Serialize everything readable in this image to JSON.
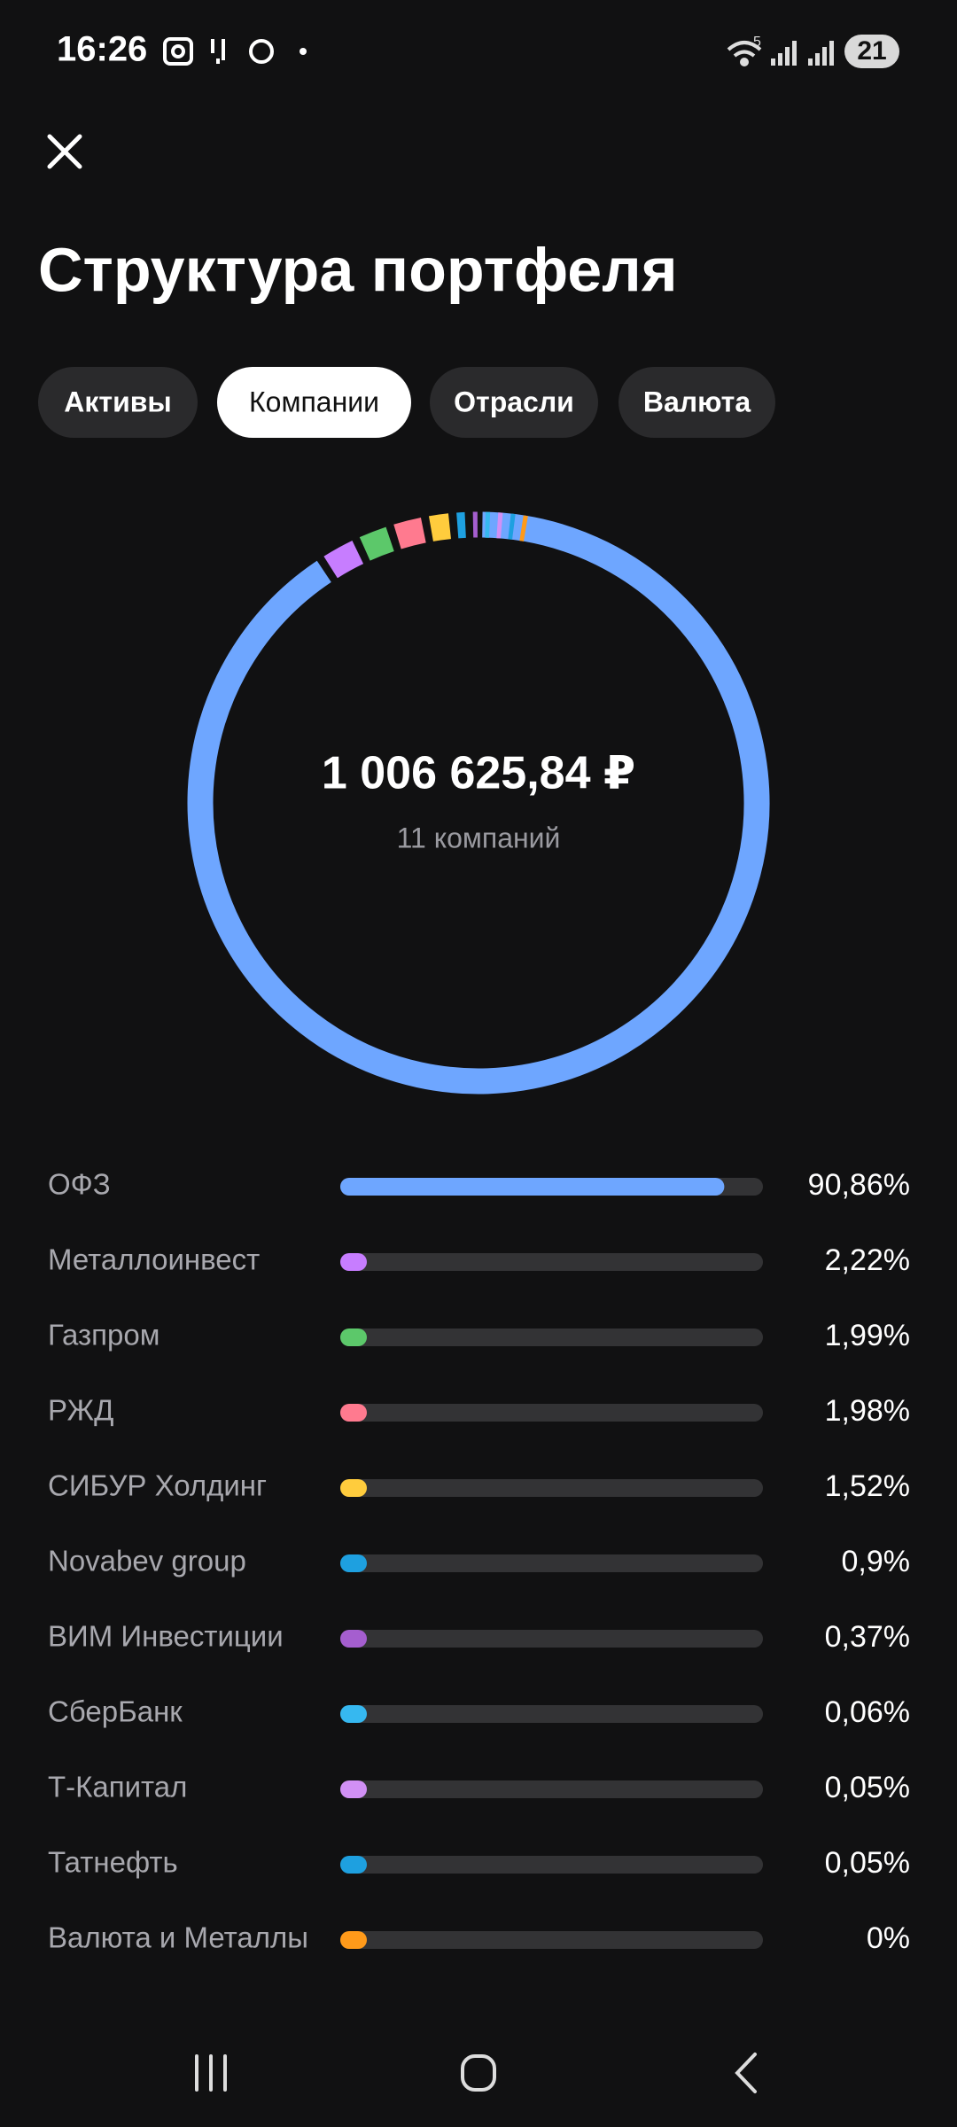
{
  "status_bar": {
    "time": "16:26",
    "network": "5",
    "battery": "21"
  },
  "header": {
    "title": "Структура портфеля"
  },
  "tabs": [
    "Активы",
    "Компании",
    "Отрасли",
    "Валюта"
  ],
  "active_tab": 1,
  "chart_data": {
    "type": "donut",
    "center_value": "1 006 625,84 ₽",
    "center_caption": "11 компаний",
    "categories": [
      "ОФЗ",
      "Металлоинвест",
      "Газпром",
      "РЖД",
      "СИБУР Холдинг",
      "Novabev group",
      "ВИМ Инвестиции",
      "СберБанк",
      "Т-Капитал",
      "Татнефть",
      "Валюта и Металлы"
    ],
    "values": [
      90.86,
      2.22,
      1.99,
      1.98,
      1.52,
      0.9,
      0.37,
      0.06,
      0.05,
      0.05,
      0
    ],
    "value_labels": [
      "90,86%",
      "2,22%",
      "1,99%",
      "1,98%",
      "1,52%",
      "0,9%",
      "0,37%",
      "0,06%",
      "0,05%",
      "0,05%",
      "0%"
    ],
    "colors": [
      "#6ea6ff",
      "#c77dff",
      "#5cc86a",
      "#ff7a8f",
      "#ffcc3d",
      "#1ea0e0",
      "#a55ecf",
      "#36b8f0",
      "#d190f5",
      "#1ea0e0",
      "#ff9a1a"
    ]
  }
}
